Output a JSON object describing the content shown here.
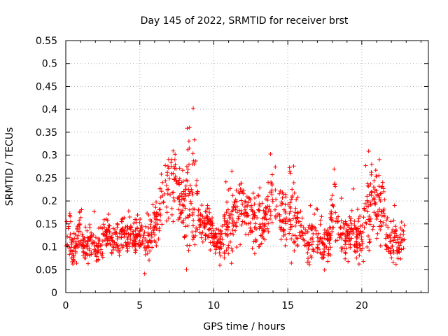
{
  "chart_data": {
    "type": "scatter",
    "title": "Day 145 of 2022, SRMTID for receiver brst",
    "xlabel": "GPS time / hours",
    "ylabel": "SRMTID / TECUs",
    "xlim": [
      0,
      24.5
    ],
    "ylim": [
      0,
      0.55
    ],
    "xticks": [
      0,
      5,
      10,
      15,
      20
    ],
    "xtick_labels": [
      "0",
      "5",
      "10",
      "15",
      "20"
    ],
    "yticks": [
      0,
      0.05,
      0.1,
      0.15,
      0.2,
      0.25,
      0.3,
      0.35,
      0.4,
      0.45,
      0.5,
      0.55
    ],
    "ytick_labels": [
      "0",
      "0.05",
      "0.1",
      "0.15",
      "0.2",
      "0.25",
      "0.3",
      "0.35",
      "0.4",
      "0.45",
      "0.5",
      "0.55"
    ],
    "grid": true,
    "marker": "+",
    "color": "#ff0000",
    "series": [
      {
        "name": "SRMTID",
        "x_start": 0.0,
        "x_end": 22.9,
        "points_count": 1500,
        "x": [
          0.0,
          0.2,
          0.4,
          0.6,
          0.8,
          1.0,
          1.2,
          1.4,
          1.6,
          1.8,
          2.0,
          2.2,
          2.4,
          2.6,
          2.8,
          3.0,
          3.2,
          3.4,
          3.6,
          3.8,
          4.0,
          4.2,
          4.4,
          4.6,
          4.8,
          5.0,
          5.2,
          5.4,
          5.6,
          5.8,
          6.0,
          6.2,
          6.4,
          6.6,
          6.8,
          7.0,
          7.2,
          7.4,
          7.6,
          7.8,
          8.0,
          8.2,
          8.4,
          8.6,
          8.8,
          9.0,
          9.2,
          9.4,
          9.6,
          9.8,
          10.0,
          10.2,
          10.4,
          10.6,
          10.8,
          11.0,
          11.2,
          11.4,
          11.6,
          11.8,
          12.0,
          12.2,
          12.4,
          12.6,
          12.8,
          13.0,
          13.2,
          13.4,
          13.6,
          13.8,
          14.0,
          14.2,
          14.4,
          14.6,
          14.8,
          15.0,
          15.2,
          15.4,
          15.6,
          15.8,
          16.0,
          16.2,
          16.4,
          16.6,
          16.8,
          17.0,
          17.2,
          17.4,
          17.6,
          17.8,
          18.0,
          18.2,
          18.4,
          18.6,
          18.8,
          19.0,
          19.2,
          19.4,
          19.6,
          19.8,
          20.0,
          20.2,
          20.4,
          20.6,
          20.8,
          21.0,
          21.2,
          21.4,
          21.6,
          21.8,
          22.0,
          22.2,
          22.4,
          22.6,
          22.8
        ],
        "y": [
          0.12,
          0.14,
          0.1,
          0.08,
          0.13,
          0.14,
          0.09,
          0.1,
          0.11,
          0.12,
          0.1,
          0.1,
          0.11,
          0.12,
          0.12,
          0.13,
          0.11,
          0.12,
          0.12,
          0.13,
          0.12,
          0.12,
          0.13,
          0.12,
          0.13,
          0.13,
          0.12,
          0.11,
          0.12,
          0.14,
          0.15,
          0.16,
          0.2,
          0.21,
          0.22,
          0.22,
          0.24,
          0.26,
          0.2,
          0.19,
          0.18,
          0.2,
          0.22,
          0.22,
          0.2,
          0.16,
          0.15,
          0.14,
          0.15,
          0.15,
          0.12,
          0.11,
          0.1,
          0.12,
          0.16,
          0.13,
          0.15,
          0.17,
          0.18,
          0.2,
          0.19,
          0.18,
          0.17,
          0.16,
          0.15,
          0.17,
          0.15,
          0.16,
          0.18,
          0.19,
          0.2,
          0.19,
          0.18,
          0.17,
          0.16,
          0.16,
          0.17,
          0.17,
          0.15,
          0.16,
          0.12,
          0.11,
          0.1,
          0.11,
          0.13,
          0.12,
          0.11,
          0.1,
          0.1,
          0.11,
          0.16,
          0.18,
          0.15,
          0.13,
          0.12,
          0.12,
          0.13,
          0.14,
          0.12,
          0.12,
          0.12,
          0.17,
          0.18,
          0.19,
          0.2,
          0.2,
          0.18,
          0.2,
          0.16,
          0.1,
          0.11,
          0.12,
          0.09,
          0.1,
          0.12
        ],
        "spread": [
          0.04,
          0.05,
          0.04,
          0.03,
          0.04,
          0.05,
          0.03,
          0.03,
          0.03,
          0.03,
          0.03,
          0.03,
          0.03,
          0.03,
          0.03,
          0.03,
          0.03,
          0.03,
          0.03,
          0.03,
          0.03,
          0.03,
          0.03,
          0.03,
          0.03,
          0.03,
          0.04,
          0.05,
          0.04,
          0.04,
          0.05,
          0.05,
          0.05,
          0.05,
          0.06,
          0.06,
          0.07,
          0.07,
          0.06,
          0.06,
          0.06,
          0.1,
          0.14,
          0.14,
          0.08,
          0.05,
          0.04,
          0.04,
          0.04,
          0.04,
          0.03,
          0.03,
          0.03,
          0.04,
          0.06,
          0.05,
          0.06,
          0.06,
          0.07,
          0.07,
          0.06,
          0.05,
          0.05,
          0.05,
          0.05,
          0.05,
          0.05,
          0.05,
          0.05,
          0.06,
          0.06,
          0.06,
          0.05,
          0.05,
          0.05,
          0.05,
          0.1,
          0.1,
          0.05,
          0.05,
          0.04,
          0.04,
          0.04,
          0.04,
          0.04,
          0.04,
          0.04,
          0.04,
          0.04,
          0.05,
          0.06,
          0.06,
          0.05,
          0.04,
          0.04,
          0.04,
          0.04,
          0.04,
          0.04,
          0.04,
          0.04,
          0.06,
          0.07,
          0.08,
          0.08,
          0.08,
          0.07,
          0.06,
          0.05,
          0.04,
          0.04,
          0.04,
          0.04,
          0.04,
          0.04
        ]
      }
    ]
  }
}
